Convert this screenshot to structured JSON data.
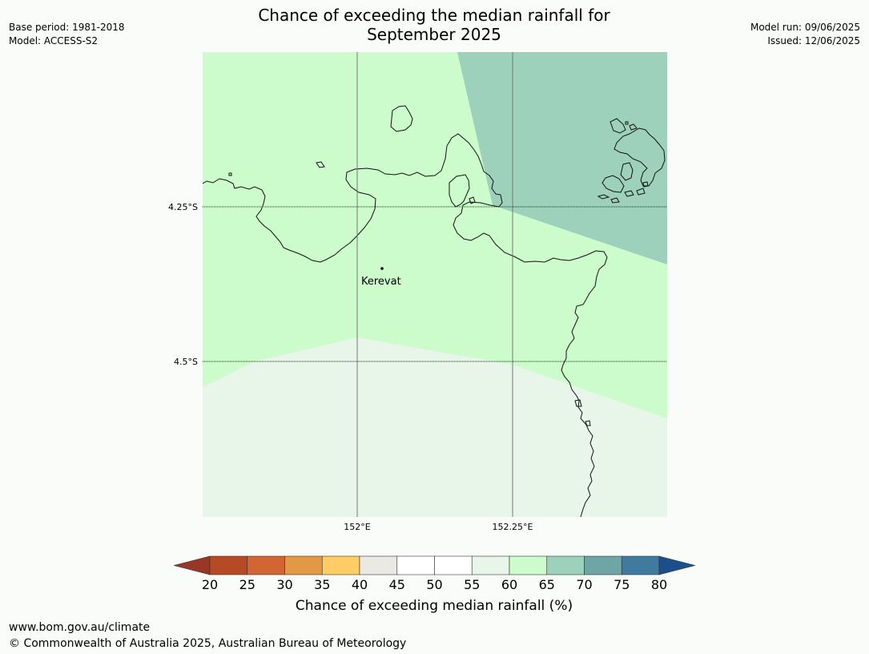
{
  "header": {
    "title_line1": "Chance of exceeding the median rainfall for",
    "title_line2": "September 2025",
    "base_period": "Base period: 1981-2018",
    "model": "Model: ACCESS-S2",
    "model_run": "Model run: 09/06/2025",
    "issued": "Issued: 12/06/2025"
  },
  "map": {
    "place_label": "Kerevat",
    "lat_labels": [
      "4.25°S",
      "4.5°S"
    ],
    "lon_labels": [
      "152°E",
      "152.25°E"
    ],
    "region_colors": {
      "band_55_60": "#e8f5e9",
      "band_60_65": "#ccfbcc",
      "band_65_70": "#9dd1bc"
    }
  },
  "colorbar": {
    "label": "Chance of exceeding median rainfall (%)",
    "ticks": [
      "20",
      "25",
      "30",
      "35",
      "40",
      "45",
      "50",
      "55",
      "60",
      "65",
      "70",
      "75",
      "80"
    ],
    "colors": [
      "#993726",
      "#b54a25",
      "#d16632",
      "#e39845",
      "#ffcc66",
      "#ebe9e4",
      "#ffffff",
      "#ffffff",
      "#e8f5e9",
      "#ccfbcc",
      "#9dd1bc",
      "#6ea6a6",
      "#407a9e",
      "#1a4f8c"
    ]
  },
  "footer": {
    "url": "www.bom.gov.au/climate",
    "copyright": "© Commonwealth of Australia 2025, Australian Bureau of Meteorology"
  }
}
